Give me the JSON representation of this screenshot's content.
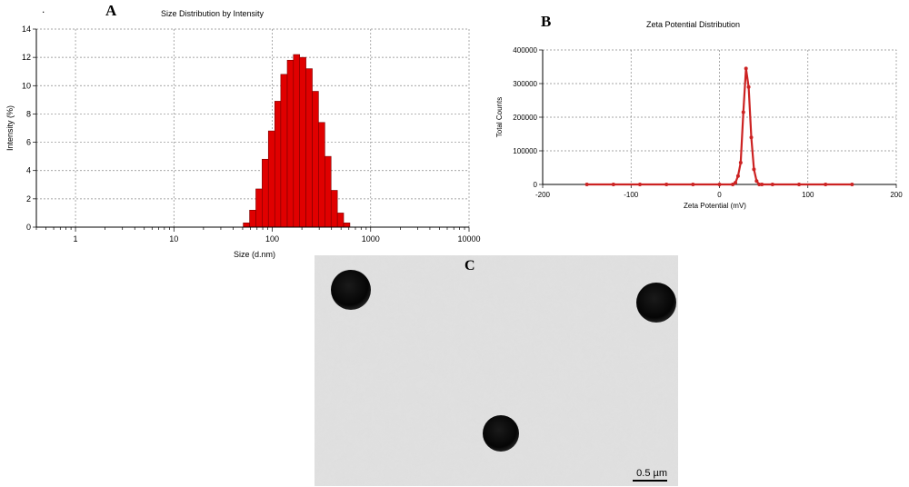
{
  "figure": {
    "panel_a_letter": "A",
    "panel_b_letter": "B",
    "panel_c_letter": "C",
    "stray_mark": "."
  },
  "colors": {
    "bar_fill": "#e00000",
    "bar_stroke": "#7a0000",
    "line_color": "#cc2222",
    "grid_color": "#888888"
  },
  "chart_data": [
    {
      "type": "bar",
      "title": "Size Distribution by Intensity",
      "xlabel": "Size (d.nm)",
      "ylabel": "Intensity (%)",
      "x_scale": "log",
      "xlim": [
        0.4,
        10000
      ],
      "ylim": [
        0,
        14
      ],
      "xticks": [
        1,
        10,
        100,
        1000,
        10000
      ],
      "xtick_labels": [
        "1",
        "10",
        "100",
        "1000",
        "10000"
      ],
      "yticks": [
        0,
        2,
        4,
        6,
        8,
        10,
        12,
        14
      ],
      "ytick_labels": [
        "0",
        "2",
        "4",
        "6",
        "8",
        "10",
        "12",
        "14"
      ],
      "grid": true,
      "bin_edges": [
        50.7,
        58.8,
        68.1,
        78.8,
        91.3,
        106,
        122,
        142,
        164,
        190,
        220,
        255,
        295,
        342,
        396,
        459,
        531,
        615
      ],
      "values": [
        0.3,
        1.2,
        2.7,
        4.8,
        6.8,
        8.9,
        10.8,
        11.8,
        12.2,
        12.0,
        11.2,
        9.6,
        7.4,
        5.0,
        2.6,
        1.0,
        0.3
      ]
    },
    {
      "type": "line",
      "title": "Zeta Potential Distribution",
      "xlabel": "Zeta Potential (mV)",
      "ylabel": "Total Counts",
      "xlim": [
        -200,
        200
      ],
      "ylim": [
        0,
        400000
      ],
      "xticks": [
        -200,
        -100,
        0,
        100,
        200
      ],
      "xtick_labels": [
        "-200",
        "-100",
        "0",
        "100",
        "200"
      ],
      "yticks": [
        0,
        100000,
        200000,
        300000,
        400000
      ],
      "ytick_labels": [
        "0",
        "100000",
        "200000",
        "300000",
        "400000"
      ],
      "grid": true,
      "series": [
        {
          "x": [
            -150,
            -120,
            -90,
            -60,
            -30,
            0,
            15,
            18,
            21,
            24,
            27,
            30,
            33,
            36,
            39,
            42,
            45,
            48,
            60,
            90,
            120,
            150
          ],
          "values": [
            0,
            0,
            0,
            0,
            0,
            0,
            0,
            5000,
            25000,
            65000,
            215000,
            345000,
            290000,
            140000,
            45000,
            10000,
            0,
            0,
            0,
            0,
            0,
            0
          ]
        }
      ]
    }
  ],
  "micrograph": {
    "scale_label": "0.5 µm"
  }
}
